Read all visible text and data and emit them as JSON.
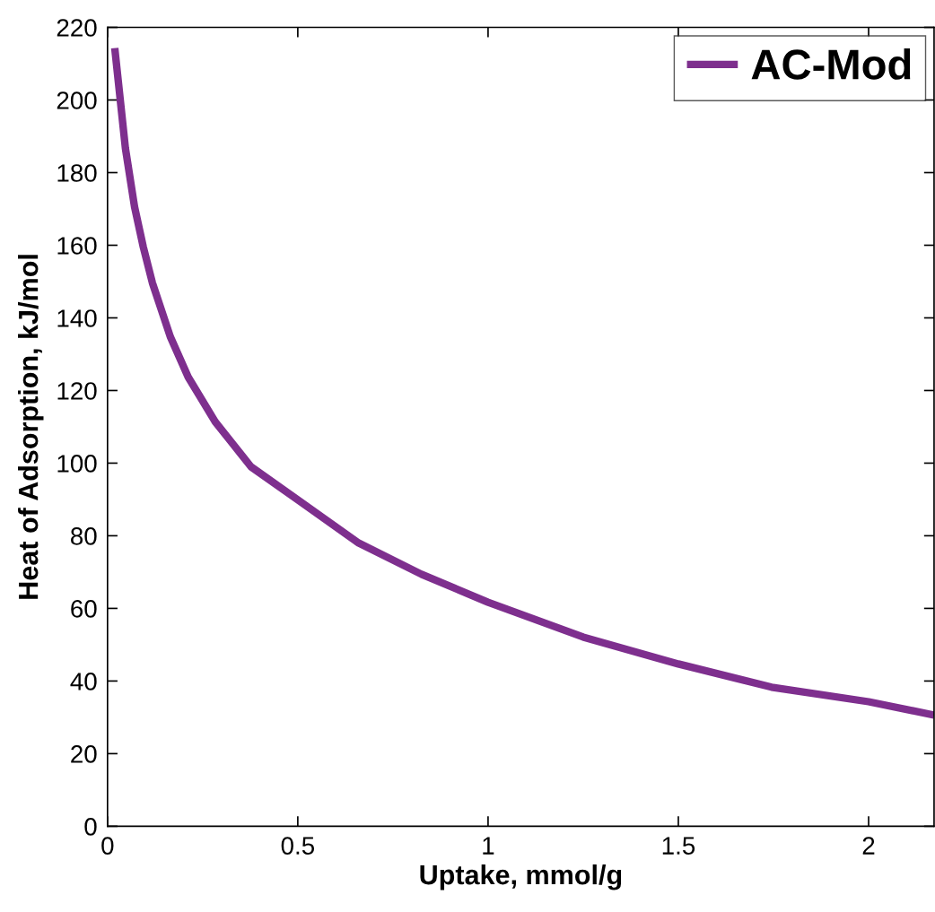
{
  "chart_data": {
    "type": "line",
    "xlabel": "Uptake, mmol/g",
    "ylabel": "Heat of Adsorption, kJ/mol",
    "xlim": [
      0,
      2.172
    ],
    "xticks": [
      0,
      0.5,
      1,
      1.5,
      2
    ],
    "ylim": [
      0,
      220
    ],
    "yticks": [
      0,
      20,
      40,
      60,
      80,
      100,
      120,
      140,
      160,
      180,
      200,
      220
    ],
    "grid": false,
    "legend": "top right",
    "marker": "none",
    "line_style": "solid",
    "series": [
      {
        "name": "AC-Mod",
        "color": "#7e2f8e",
        "x": [
          0.019,
          0.047,
          0.071,
          0.094,
          0.118,
          0.165,
          0.212,
          0.283,
          0.377,
          0.5,
          0.66,
          0.825,
          1.0,
          1.25,
          1.5,
          1.745,
          2.0,
          2.172
        ],
        "values": [
          214.3,
          186.7,
          170.6,
          159.5,
          149.6,
          134.8,
          123.7,
          111.4,
          99.0,
          89.9,
          78.0,
          69.4,
          61.7,
          52.1,
          44.7,
          38.3,
          34.3,
          30.6
        ]
      }
    ]
  }
}
